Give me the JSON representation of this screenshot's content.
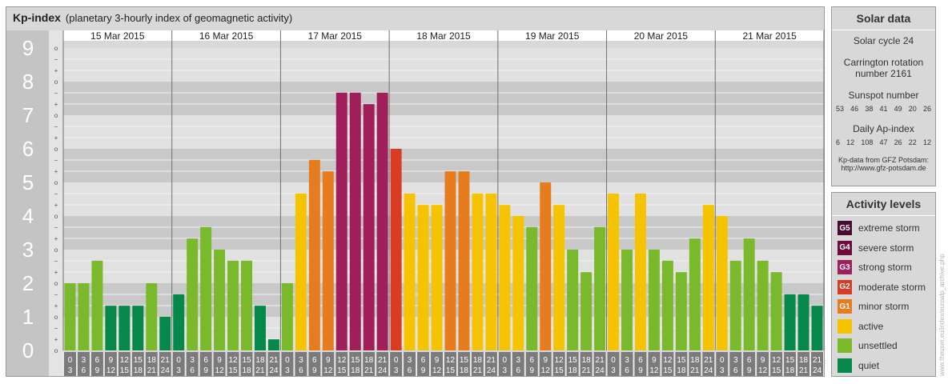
{
  "title": "Kp-index",
  "subtitle": "(planetary 3-hourly index of geomagnetic activity)",
  "chart_data": {
    "type": "bar",
    "title": "Kp-index",
    "subtitle": "(planetary 3-hourly index of geomagnetic activity)",
    "ylim": [
      0,
      9
    ],
    "y_ticks": [
      "0",
      "1",
      "2",
      "3",
      "4",
      "5",
      "6",
      "7",
      "8",
      "9"
    ],
    "minor_tick_labels": [
      "o",
      "+",
      "−"
    ],
    "grid": true,
    "days": [
      "15 Mar 2015",
      "16 Mar 2015",
      "17 Mar 2015",
      "18 Mar 2015",
      "19 Mar 2015",
      "20 Mar 2015",
      "21 Mar 2015"
    ],
    "interval_start_labels": [
      "0",
      "3",
      "6",
      "9",
      "12",
      "15",
      "18",
      "21"
    ],
    "interval_end_labels": [
      "3",
      "6",
      "9",
      "12",
      "15",
      "18",
      "21",
      "24"
    ],
    "values": [
      [
        2.0,
        2.0,
        2.67,
        1.33,
        1.33,
        1.33,
        2.0,
        1.0
      ],
      [
        1.67,
        3.33,
        3.67,
        3.0,
        2.67,
        2.67,
        1.33,
        0.33
      ],
      [
        2.0,
        4.67,
        5.67,
        5.33,
        7.67,
        7.67,
        7.33,
        7.67
      ],
      [
        6.0,
        4.67,
        4.33,
        4.33,
        5.33,
        5.33,
        4.67,
        4.67
      ],
      [
        4.33,
        4.0,
        3.67,
        5.0,
        4.33,
        3.0,
        2.33,
        3.67
      ],
      [
        4.67,
        3.0,
        4.67,
        3.0,
        2.67,
        2.33,
        3.33,
        4.33
      ],
      [
        4.0,
        2.67,
        3.33,
        2.67,
        2.33,
        1.67,
        1.67,
        1.33
      ]
    ],
    "activity_levels": [
      {
        "min": 9,
        "max": 99,
        "color": "#4a0b32"
      },
      {
        "min": 8,
        "max": 9,
        "color": "#6e0a3c"
      },
      {
        "min": 7,
        "max": 8,
        "color": "#a01e5a"
      },
      {
        "min": 6,
        "max": 7,
        "color": "#d93c25"
      },
      {
        "min": 5,
        "max": 6,
        "color": "#e67c1e"
      },
      {
        "min": 4,
        "max": 5,
        "color": "#f5c300"
      },
      {
        "min": 2,
        "max": 4,
        "color": "#7ab92b"
      },
      {
        "min": 0,
        "max": 2,
        "color": "#06884a"
      }
    ]
  },
  "solar": {
    "heading": "Solar data",
    "cycle": "Solar cycle 24",
    "carrington_line1": "Carrington rotation",
    "carrington_line2": "number 2161",
    "sunspot_label": "Sunspot number",
    "sunspot_values": [
      "53",
      "46",
      "38",
      "41",
      "49",
      "20",
      "26"
    ],
    "ap_label": "Daily Ap-index",
    "ap_values": [
      "6",
      "12",
      "108",
      "47",
      "26",
      "22",
      "12"
    ],
    "source_line1": "Kp-data from GFZ Potsdam:",
    "source_line2": "http://www.gfz-potsdam.de"
  },
  "activity": {
    "heading": "Activity levels",
    "items": [
      {
        "code": "G5",
        "label": "extreme storm",
        "color": "#4a0b32"
      },
      {
        "code": "G4",
        "label": "severe storm",
        "color": "#6e0a3c"
      },
      {
        "code": "G3",
        "label": "strong storm",
        "color": "#a01e5a"
      },
      {
        "code": "G2",
        "label": "moderate storm",
        "color": "#d93c25"
      },
      {
        "code": "G1",
        "label": "minor storm",
        "color": "#e67c1e"
      },
      {
        "code": "",
        "label": "active",
        "color": "#f5c300"
      },
      {
        "code": "",
        "label": "unsettled",
        "color": "#7ab92b"
      },
      {
        "code": "",
        "label": "quiet",
        "color": "#06884a"
      }
    ]
  },
  "credit": "www.theuser.eu/index/euroalp_archive.php"
}
